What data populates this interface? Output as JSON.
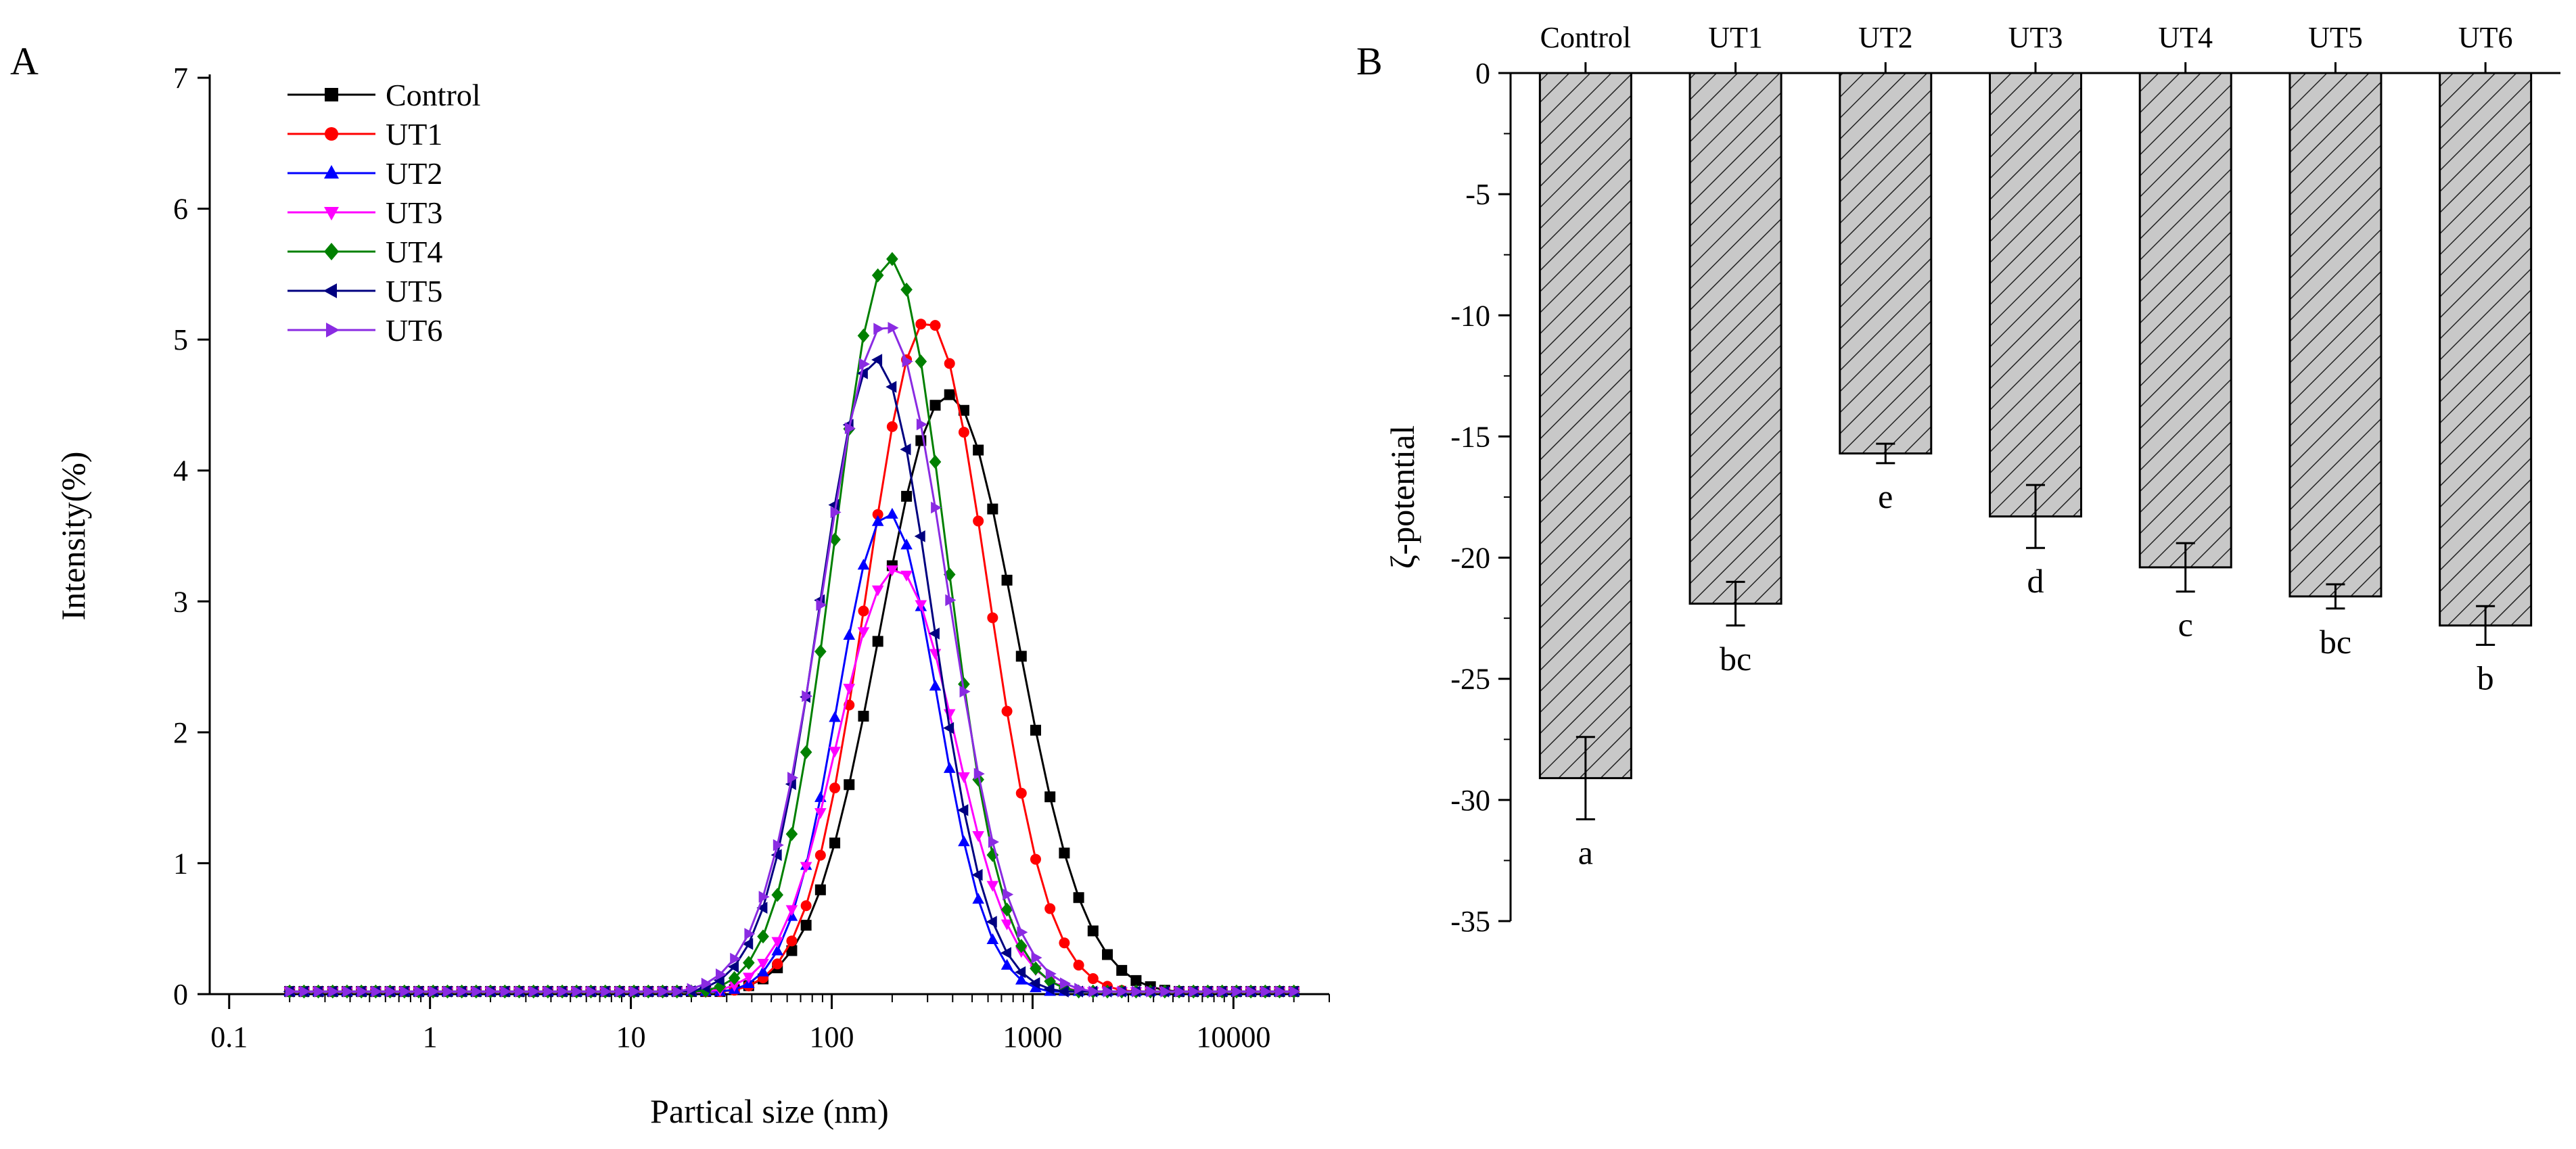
{
  "panels": {
    "a_label": "A",
    "b_label": "B"
  },
  "chart_data": [
    {
      "type": "line",
      "panel": "A",
      "title": "",
      "xlabel": "Partical size (nm)",
      "ylabel": "Intensity(%)",
      "xscale": "log",
      "xlim": [
        0.08,
        30000
      ],
      "ylim": [
        0,
        7
      ],
      "x_ticks": [
        0.1,
        1,
        10,
        100,
        1000,
        10000
      ],
      "x_tick_labels": [
        "0.1",
        "1",
        "10",
        "100",
        "1000",
        "10000"
      ],
      "y_ticks": [
        0,
        1,
        2,
        3,
        4,
        5,
        6,
        7
      ],
      "y_tick_labels": [
        "0",
        "1",
        "2",
        "3",
        "4",
        "5",
        "6",
        "7"
      ],
      "legend_position": "top-left",
      "series": [
        {
          "name": "Control",
          "color": "#000000",
          "marker": "square",
          "peak_nm": 380,
          "peak": 4.58,
          "sigma": 0.34
        },
        {
          "name": "UT1",
          "color": "#ff0000",
          "marker": "circle",
          "peak_nm": 300,
          "peak": 5.15,
          "sigma": 0.3
        },
        {
          "name": "UT2",
          "color": "#0000ff",
          "marker": "triangle-up",
          "peak_nm": 190,
          "peak": 3.68,
          "sigma": 0.25
        },
        {
          "name": "UT3",
          "color": "#ff00ff",
          "marker": "triangle-down",
          "peak_nm": 210,
          "peak": 3.25,
          "sigma": 0.29
        },
        {
          "name": "UT4",
          "color": "#008000",
          "marker": "diamond",
          "peak_nm": 195,
          "peak": 5.62,
          "sigma": 0.28
        },
        {
          "name": "UT5",
          "color": "#000080",
          "marker": "triangle-left",
          "peak_nm": 165,
          "peak": 4.85,
          "sigma": 0.28
        },
        {
          "name": "UT6",
          "color": "#8a2be2",
          "marker": "triangle-right",
          "peak_nm": 185,
          "peak": 5.12,
          "sigma": 0.31
        }
      ]
    },
    {
      "type": "bar",
      "panel": "B",
      "title": "",
      "xlabel": "",
      "ylabel": "ζ-potential",
      "ylim": [
        -35,
        0
      ],
      "y_ticks": [
        0,
        -5,
        -10,
        -15,
        -20,
        -25,
        -30,
        -35
      ],
      "y_tick_labels": [
        "0",
        "-5",
        "-10",
        "-15",
        "-20",
        "-25",
        "-30",
        "-35"
      ],
      "categories": [
        "Control",
        "UT1",
        "UT2",
        "UT3",
        "UT4",
        "UT5",
        "UT6"
      ],
      "values": [
        -29.1,
        -21.9,
        -15.7,
        -18.3,
        -20.4,
        -21.6,
        -22.8
      ],
      "errors": [
        1.7,
        0.9,
        0.4,
        1.3,
        1.0,
        0.5,
        0.8
      ],
      "significance": [
        "a",
        "bc",
        "e",
        "d",
        "c",
        "bc",
        "b"
      ],
      "bar_fill": "#c8c8c8",
      "hatch": "diagonal"
    }
  ]
}
